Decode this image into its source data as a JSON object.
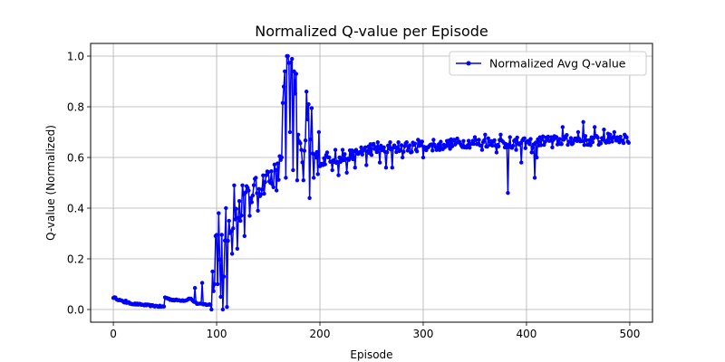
{
  "chart_data": {
    "type": "line",
    "title": "Normalized Q-value per Episode",
    "xlabel": "Episode",
    "ylabel": "Q-value (Normalized)",
    "xlim": [
      -22,
      522
    ],
    "ylim": [
      -0.05,
      1.05
    ],
    "xticks": [
      0,
      100,
      200,
      300,
      400,
      500
    ],
    "yticks": [
      0.0,
      0.2,
      0.4,
      0.6,
      0.8,
      1.0
    ],
    "xtick_labels": [
      "0",
      "100",
      "200",
      "300",
      "400",
      "500"
    ],
    "ytick_labels": [
      "0.0",
      "0.2",
      "0.4",
      "0.6",
      "0.8",
      "1.0"
    ],
    "grid": true,
    "legend_position": "top-right",
    "series": [
      {
        "name": "Normalized Avg Q-value",
        "color": "#0000ff",
        "marker": "circle",
        "control_points": [
          [
            0,
            0.048
          ],
          [
            3,
            0.043
          ],
          [
            5,
            0.039
          ],
          [
            10,
            0.03
          ],
          [
            15,
            0.026
          ],
          [
            20,
            0.022
          ],
          [
            30,
            0.018
          ],
          [
            40,
            0.014
          ],
          [
            49,
            0.011
          ],
          [
            50,
            0.048
          ],
          [
            55,
            0.04
          ],
          [
            60,
            0.037
          ],
          [
            70,
            0.036
          ],
          [
            74,
            0.045
          ],
          [
            80,
            0.025
          ],
          [
            85,
            0.02
          ],
          [
            90,
            0.02
          ],
          [
            95,
            0.018
          ],
          [
            98,
            0.12
          ],
          [
            100,
            0.28
          ],
          [
            102,
            0.2
          ],
          [
            105,
            0.3
          ],
          [
            108,
            0.25
          ],
          [
            110,
            0.3
          ],
          [
            113,
            0.35
          ],
          [
            115,
            0.28
          ],
          [
            118,
            0.36
          ],
          [
            120,
            0.4
          ],
          [
            125,
            0.42
          ],
          [
            130,
            0.45
          ],
          [
            135,
            0.46
          ],
          [
            140,
            0.48
          ],
          [
            145,
            0.5
          ],
          [
            150,
            0.52
          ],
          [
            155,
            0.53
          ],
          [
            160,
            0.54
          ],
          [
            163,
            0.62
          ],
          [
            165,
            0.9
          ],
          [
            168,
            0.99
          ],
          [
            170,
            0.96
          ],
          [
            173,
            0.95
          ],
          [
            176,
            0.85
          ],
          [
            180,
            0.62
          ],
          [
            185,
            0.6
          ],
          [
            188,
            0.75
          ],
          [
            191,
            0.65
          ],
          [
            195,
            0.59
          ],
          [
            200,
            0.58
          ],
          [
            210,
            0.6
          ],
          [
            220,
            0.59
          ],
          [
            230,
            0.61
          ],
          [
            240,
            0.62
          ],
          [
            250,
            0.64
          ],
          [
            260,
            0.63
          ],
          [
            270,
            0.63
          ],
          [
            280,
            0.64
          ],
          [
            290,
            0.64
          ],
          [
            300,
            0.65
          ],
          [
            310,
            0.64
          ],
          [
            320,
            0.65
          ],
          [
            330,
            0.655
          ],
          [
            340,
            0.66
          ],
          [
            350,
            0.655
          ],
          [
            360,
            0.66
          ],
          [
            370,
            0.665
          ],
          [
            380,
            0.65
          ],
          [
            390,
            0.66
          ],
          [
            400,
            0.655
          ],
          [
            410,
            0.66
          ],
          [
            420,
            0.67
          ],
          [
            430,
            0.665
          ],
          [
            440,
            0.67
          ],
          [
            450,
            0.67
          ],
          [
            460,
            0.665
          ],
          [
            470,
            0.67
          ],
          [
            480,
            0.675
          ],
          [
            490,
            0.68
          ],
          [
            499,
            0.67
          ]
        ],
        "spikes": [
          [
            12,
            0.035
          ],
          [
            79,
            0.085
          ],
          [
            86,
            0.105
          ],
          [
            96,
            0.15
          ],
          [
            99,
            0.29
          ],
          [
            101,
            0.1
          ],
          [
            102,
            0.38
          ],
          [
            104,
            0.05
          ],
          [
            106,
            0.0
          ],
          [
            107,
            0.13
          ],
          [
            109,
            0.4
          ],
          [
            110,
            0.01
          ],
          [
            112,
            0.35
          ],
          [
            115,
            0.22
          ],
          [
            117,
            0.49
          ],
          [
            120,
            0.24
          ],
          [
            123,
            0.35
          ],
          [
            125,
            0.49
          ],
          [
            127,
            0.29
          ],
          [
            130,
            0.48
          ],
          [
            132,
            0.37
          ],
          [
            135,
            0.45
          ],
          [
            138,
            0.52
          ],
          [
            140,
            0.39
          ],
          [
            148,
            0.53
          ],
          [
            152,
            0.5
          ],
          [
            158,
            0.47
          ],
          [
            164,
            0.815
          ],
          [
            166,
            0.94
          ],
          [
            167,
            0.52
          ],
          [
            169,
            1.0
          ],
          [
            171,
            0.7
          ],
          [
            172,
            0.975
          ],
          [
            174,
            0.55
          ],
          [
            175,
            0.94
          ],
          [
            177,
            0.93
          ],
          [
            178,
            0.51
          ],
          [
            182,
            0.63
          ],
          [
            184,
            0.51
          ],
          [
            187,
            0.86
          ],
          [
            189,
            0.81
          ],
          [
            190,
            0.44
          ],
          [
            192,
            0.795
          ],
          [
            194,
            0.52
          ],
          [
            196,
            0.6
          ],
          [
            199,
            0.7
          ],
          [
            203,
            0.57
          ],
          [
            207,
            0.62
          ],
          [
            212,
            0.55
          ],
          [
            215,
            0.63
          ],
          [
            218,
            0.53
          ],
          [
            222,
            0.63
          ],
          [
            226,
            0.54
          ],
          [
            230,
            0.6
          ],
          [
            234,
            0.56
          ],
          [
            240,
            0.64
          ],
          [
            245,
            0.57
          ],
          [
            250,
            0.61
          ],
          [
            256,
            0.66
          ],
          [
            258,
            0.58
          ],
          [
            262,
            0.64
          ],
          [
            264,
            0.56
          ],
          [
            268,
            0.66
          ],
          [
            270,
            0.56
          ],
          [
            273,
            0.64
          ],
          [
            276,
            0.66
          ],
          [
            280,
            0.6
          ],
          [
            284,
            0.66
          ],
          [
            288,
            0.62
          ],
          [
            295,
            0.67
          ],
          [
            300,
            0.6
          ],
          [
            305,
            0.64
          ],
          [
            310,
            0.67
          ],
          [
            320,
            0.65
          ],
          [
            330,
            0.67
          ],
          [
            340,
            0.64
          ],
          [
            350,
            0.68
          ],
          [
            357,
            0.63
          ],
          [
            360,
            0.69
          ],
          [
            365,
            0.65
          ],
          [
            371,
            0.62
          ],
          [
            375,
            0.69
          ],
          [
            379,
            0.64
          ],
          [
            382,
            0.46
          ],
          [
            384,
            0.68
          ],
          [
            390,
            0.63
          ],
          [
            395,
            0.58
          ],
          [
            400,
            0.66
          ],
          [
            405,
            0.62
          ],
          [
            408,
            0.52
          ],
          [
            410,
            0.6
          ],
          [
            420,
            0.67
          ],
          [
            425,
            0.64
          ],
          [
            435,
            0.72
          ],
          [
            440,
            0.65
          ],
          [
            450,
            0.7
          ],
          [
            455,
            0.74
          ],
          [
            460,
            0.65
          ],
          [
            466,
            0.72
          ],
          [
            470,
            0.65
          ],
          [
            475,
            0.71
          ],
          [
            480,
            0.66
          ],
          [
            485,
            0.7
          ],
          [
            490,
            0.66
          ],
          [
            495,
            0.69
          ]
        ]
      }
    ]
  }
}
